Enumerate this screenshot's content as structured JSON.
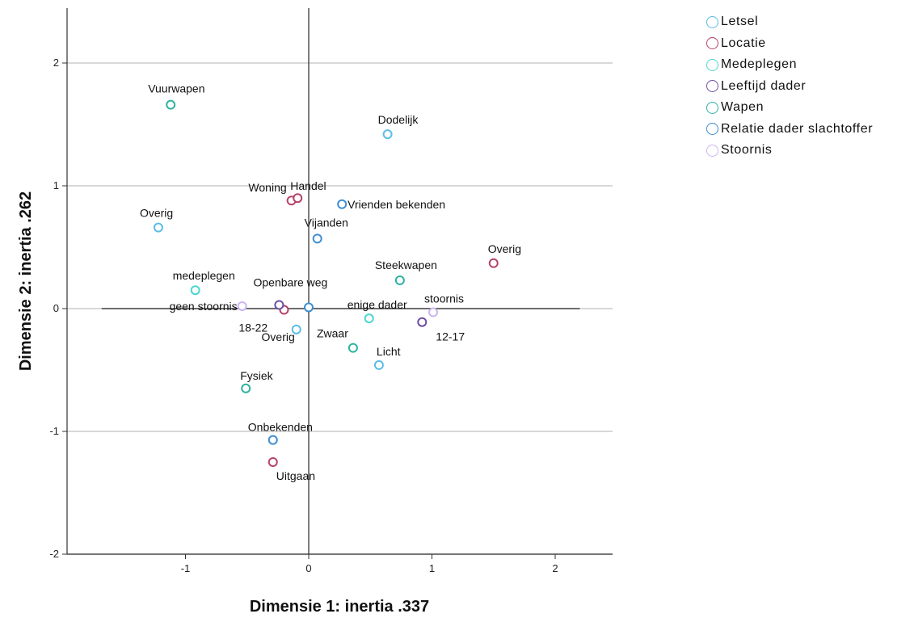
{
  "chart_data": {
    "type": "scatter",
    "xlabel": "Dimensie 1: inertia .337",
    "ylabel": "Dimensie 2: inertia .262",
    "xlim": [
      -1.95,
      2.45
    ],
    "ylim": [
      -2.02,
      2.45
    ],
    "x_ticks": [
      "-1",
      "0",
      "1",
      "2"
    ],
    "y_ticks": [
      "2",
      "1",
      "0",
      "-1",
      "-2"
    ],
    "grid": "horizontal",
    "reference_line_x": 0,
    "reference_line_y_range": [
      -1.68,
      2.2
    ],
    "legend_position": "right",
    "series": [
      {
        "name": "Letsel",
        "color": "#5bbde8",
        "points": [
          {
            "label": "Dodelijk",
            "x": 0.64,
            "y": 1.42
          },
          {
            "label": "Overig",
            "x": -1.22,
            "y": 0.66
          },
          {
            "label": "Overig",
            "x": -0.1,
            "y": -0.17
          },
          {
            "label": "Licht",
            "x": 0.57,
            "y": -0.46
          }
        ]
      },
      {
        "name": "Locatie",
        "color": "#b5436b",
        "points": [
          {
            "label": "Woning",
            "x": -0.14,
            "y": 0.88
          },
          {
            "label": "Handel",
            "x": -0.09,
            "y": 0.9
          },
          {
            "label": "Overig",
            "x": 1.5,
            "y": 0.37
          },
          {
            "label": "Openbare weg",
            "x": -0.2,
            "y": -0.01
          },
          {
            "label": "Uitgaan",
            "x": -0.29,
            "y": -1.25
          }
        ]
      },
      {
        "name": "Medeplegen",
        "color": "#4dd6d0",
        "points": [
          {
            "label": "medeplegen",
            "x": -0.92,
            "y": 0.15
          },
          {
            "label": "enige dader",
            "x": 0.49,
            "y": -0.08
          }
        ]
      },
      {
        "name": "Leeftijd dader",
        "color": "#6d4ea3",
        "points": [
          {
            "label": "18-22",
            "x": -0.24,
            "y": 0.03
          },
          {
            "label": "12-17",
            "x": 0.92,
            "y": -0.11
          }
        ]
      },
      {
        "name": "Wapen",
        "color": "#2eb3a1",
        "points": [
          {
            "label": "Vuurwapen",
            "x": -1.12,
            "y": 1.66
          },
          {
            "label": "Steekwapen",
            "x": 0.74,
            "y": 0.23
          },
          {
            "label": "Zwaar",
            "x": 0.36,
            "y": -0.32
          },
          {
            "label": "Fysiek",
            "x": -0.51,
            "y": -0.65
          }
        ]
      },
      {
        "name": "Relatie dader slachtoffer",
        "color": "#3d8ed1",
        "points": [
          {
            "label": "Vrienden bekenden",
            "x": 0.27,
            "y": 0.85
          },
          {
            "label": "Vijanden",
            "x": 0.07,
            "y": 0.57
          },
          {
            "label": "Overig",
            "x": 0.0,
            "y": 0.01
          },
          {
            "label": "Onbekenden",
            "x": -0.29,
            "y": -1.07
          }
        ]
      },
      {
        "name": "Stoornis",
        "color": "#cdb5f0",
        "points": [
          {
            "label": "geen stoornis",
            "x": -0.54,
            "y": 0.02
          },
          {
            "label": "stoornis",
            "x": 1.01,
            "y": -0.03
          }
        ]
      }
    ]
  }
}
